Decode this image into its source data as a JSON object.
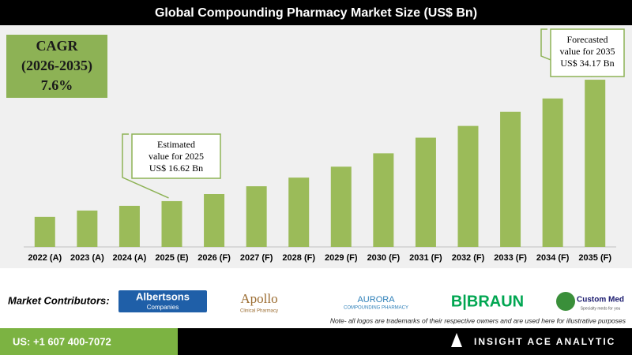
{
  "chart_data": {
    "type": "bar",
    "title": "Global Compounding Pharmacy Market Size (US$ Bn)",
    "categories": [
      "2022 (A)",
      "2023 (A)",
      "2024 (A)",
      "2025 (E)",
      "2026 (F)",
      "2027 (F)",
      "2028 (F)",
      "2029 (F)",
      "2030 (F)",
      "2031 (F)",
      "2032 (F)",
      "2033 (F)",
      "2034 (F)",
      "2035 (F)"
    ],
    "values": [
      14.35,
      15.26,
      15.94,
      16.62,
      17.64,
      18.77,
      20.02,
      21.6,
      23.53,
      25.79,
      27.49,
      29.53,
      31.46,
      34.17
    ],
    "color": "#9bbb59",
    "ylim": [
      10,
      36
    ],
    "cagr": [
      "CAGR",
      "(2026-2035)",
      "7.6%"
    ],
    "annotations": [
      [
        "Estimated",
        "value for 2025",
        "US$ 16.62 Bn"
      ],
      [
        "Forecasted",
        "value for 2035",
        "US$ 34.17 Bn"
      ]
    ]
  },
  "contributors": {
    "label": "Market Contributors:",
    "logos": [
      [
        "Albertsons",
        "Companies"
      ],
      [
        "Apollo",
        "Clinical Pharmacy"
      ],
      [
        "AURORA",
        "COMPOUNDING PHARMACY"
      ],
      [
        "B|BRAUN"
      ],
      [
        "Custom Med",
        "Specialty meds for you"
      ]
    ],
    "note": "Note- all logos are trademarks of their respective owners and are used here for illustrative purposes"
  },
  "footer": {
    "phone": "US: +1 607 400-7072",
    "brand": "INSIGHT ACE ANALYTIC"
  }
}
